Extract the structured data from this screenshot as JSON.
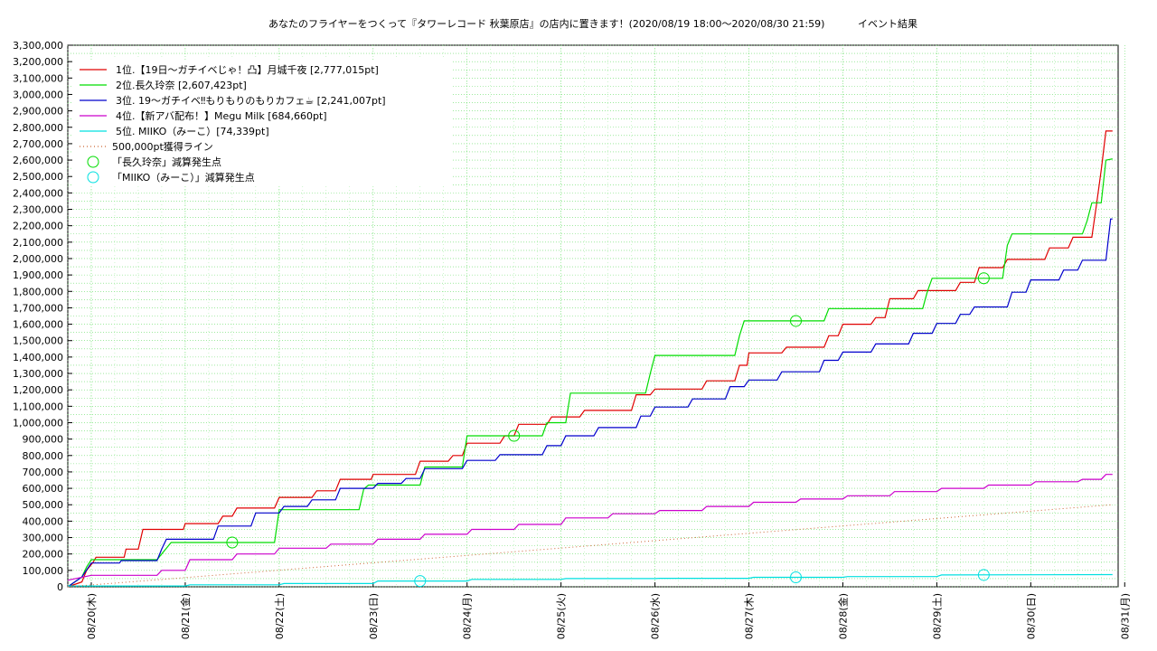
{
  "chart_data": {
    "type": "line",
    "title": "あなたのフライヤーをつくって『タワーレコード 秋葉原店』の店内に置きます！(2020/08/19 18:00〜2020/08/30 21:59)",
    "subtitle": "イベント結果",
    "ylim": [
      0,
      3300000
    ],
    "ytick_labels": [
      "0",
      "100,000",
      "200,000",
      "300,000",
      "400,000",
      "500,000",
      "600,000",
      "700,000",
      "800,000",
      "900,000",
      "1,000,000",
      "1,100,000",
      "1,200,000",
      "1,300,000",
      "1,400,000",
      "1,500,000",
      "1,600,000",
      "1,700,000",
      "1,800,000",
      "1,900,000",
      "2,000,000",
      "2,100,000",
      "2,200,000",
      "2,300,000",
      "2,400,000",
      "2,500,000",
      "2,600,000",
      "2,700,000",
      "2,800,000",
      "2,900,000",
      "3,000,000",
      "3,100,000",
      "3,200,000",
      "3,300,000"
    ],
    "xlim": [
      -0.25,
      10.93
    ],
    "xtick_labels": [
      "08/20(木)",
      "08/21(金)",
      "08/22(土)",
      "08/23(日)",
      "08/24(月)",
      "08/25(火)",
      "08/26(水)",
      "08/27(木)",
      "08/28(金)",
      "08/29(土)",
      "08/30(日)",
      "08/31(月)"
    ],
    "grid": true,
    "legend_position": "top-left",
    "series": [
      {
        "name": "1位.【19日〜ガチイベじゃ！凸】月城千夜 [2,777,015pt]",
        "color": "#e00000",
        "points": [
          [
            -0.25,
            0
          ],
          [
            -0.1,
            30000
          ],
          [
            -0.05,
            100000
          ],
          [
            0.02,
            150000
          ],
          [
            0.05,
            180000
          ],
          [
            0.35,
            180000
          ],
          [
            0.37,
            230000
          ],
          [
            0.5,
            230000
          ],
          [
            0.55,
            350000
          ],
          [
            0.98,
            350000
          ],
          [
            1.0,
            385000
          ],
          [
            1.35,
            385000
          ],
          [
            1.4,
            430000
          ],
          [
            1.5,
            430000
          ],
          [
            1.55,
            480000
          ],
          [
            1.95,
            480000
          ],
          [
            2.0,
            545000
          ],
          [
            2.35,
            545000
          ],
          [
            2.4,
            585000
          ],
          [
            2.6,
            585000
          ],
          [
            2.65,
            655000
          ],
          [
            2.98,
            655000
          ],
          [
            3.0,
            685000
          ],
          [
            3.45,
            685000
          ],
          [
            3.5,
            765000
          ],
          [
            3.8,
            765000
          ],
          [
            3.85,
            800000
          ],
          [
            3.95,
            800000
          ],
          [
            4.0,
            875000
          ],
          [
            4.35,
            875000
          ],
          [
            4.4,
            920000
          ],
          [
            4.5,
            920000
          ],
          [
            4.55,
            990000
          ],
          [
            4.85,
            990000
          ],
          [
            4.9,
            1035000
          ],
          [
            5.2,
            1035000
          ],
          [
            5.25,
            1075000
          ],
          [
            5.75,
            1075000
          ],
          [
            5.8,
            1170000
          ],
          [
            5.95,
            1170000
          ],
          [
            6.0,
            1205000
          ],
          [
            6.5,
            1205000
          ],
          [
            6.55,
            1255000
          ],
          [
            6.85,
            1255000
          ],
          [
            6.9,
            1350000
          ],
          [
            6.98,
            1350000
          ],
          [
            7.0,
            1425000
          ],
          [
            7.35,
            1425000
          ],
          [
            7.4,
            1460000
          ],
          [
            7.8,
            1460000
          ],
          [
            7.85,
            1530000
          ],
          [
            7.95,
            1530000
          ],
          [
            8.0,
            1600000
          ],
          [
            8.3,
            1600000
          ],
          [
            8.35,
            1640000
          ],
          [
            8.45,
            1640000
          ],
          [
            8.5,
            1755000
          ],
          [
            8.75,
            1755000
          ],
          [
            8.8,
            1805000
          ],
          [
            9.2,
            1805000
          ],
          [
            9.25,
            1855000
          ],
          [
            9.4,
            1855000
          ],
          [
            9.45,
            1945000
          ],
          [
            9.7,
            1945000
          ],
          [
            9.75,
            1995000
          ],
          [
            10.15,
            1995000
          ],
          [
            10.2,
            2065000
          ],
          [
            10.4,
            2065000
          ],
          [
            10.45,
            2130000
          ],
          [
            10.65,
            2130000
          ],
          [
            10.7,
            2330000
          ],
          [
            10.75,
            2540000
          ],
          [
            10.8,
            2777015
          ],
          [
            10.87,
            2777015
          ]
        ]
      },
      {
        "name": "2位.長久玲奈 [2,607,423pt]",
        "color": "#00dd00",
        "points": [
          [
            -0.25,
            0
          ],
          [
            -0.1,
            60000
          ],
          [
            -0.05,
            120000
          ],
          [
            0.0,
            165000
          ],
          [
            0.7,
            165000
          ],
          [
            0.85,
            270000
          ],
          [
            1.95,
            270000
          ],
          [
            2.0,
            470000
          ],
          [
            2.85,
            470000
          ],
          [
            2.9,
            595000
          ],
          [
            2.95,
            620000
          ],
          [
            3.5,
            620000
          ],
          [
            3.55,
            730000
          ],
          [
            3.95,
            730000
          ],
          [
            4.0,
            920000
          ],
          [
            4.8,
            920000
          ],
          [
            4.85,
            1000000
          ],
          [
            5.05,
            1000000
          ],
          [
            5.1,
            1180000
          ],
          [
            5.9,
            1180000
          ],
          [
            5.95,
            1300000
          ],
          [
            6.0,
            1410000
          ],
          [
            6.85,
            1410000
          ],
          [
            6.9,
            1530000
          ],
          [
            6.95,
            1620000
          ],
          [
            7.8,
            1620000
          ],
          [
            7.85,
            1695000
          ],
          [
            8.85,
            1695000
          ],
          [
            8.9,
            1800000
          ],
          [
            8.95,
            1880000
          ],
          [
            9.7,
            1880000
          ],
          [
            9.75,
            2080000
          ],
          [
            9.8,
            2150000
          ],
          [
            10.55,
            2150000
          ],
          [
            10.6,
            2230000
          ],
          [
            10.65,
            2340000
          ],
          [
            10.75,
            2340000
          ],
          [
            10.8,
            2600000
          ],
          [
            10.87,
            2607423
          ]
        ]
      },
      {
        "name": "3位. 19〜ガチイベ‼もりもりのもりカフェ☕ [2,241,007pt]",
        "color": "#0000cc",
        "points": [
          [
            -0.25,
            0
          ],
          [
            -0.1,
            60000
          ],
          [
            0.0,
            145000
          ],
          [
            0.3,
            145000
          ],
          [
            0.32,
            160000
          ],
          [
            0.7,
            160000
          ],
          [
            0.75,
            230000
          ],
          [
            0.8,
            290000
          ],
          [
            1.3,
            290000
          ],
          [
            1.35,
            370000
          ],
          [
            1.7,
            370000
          ],
          [
            1.75,
            450000
          ],
          [
            2.0,
            450000
          ],
          [
            2.05,
            490000
          ],
          [
            2.3,
            490000
          ],
          [
            2.35,
            530000
          ],
          [
            2.6,
            530000
          ],
          [
            2.65,
            600000
          ],
          [
            3.0,
            600000
          ],
          [
            3.05,
            630000
          ],
          [
            3.3,
            630000
          ],
          [
            3.35,
            660000
          ],
          [
            3.5,
            660000
          ],
          [
            3.55,
            720000
          ],
          [
            3.95,
            720000
          ],
          [
            4.0,
            770000
          ],
          [
            4.3,
            770000
          ],
          [
            4.35,
            805000
          ],
          [
            4.8,
            805000
          ],
          [
            4.85,
            860000
          ],
          [
            5.0,
            860000
          ],
          [
            5.05,
            920000
          ],
          [
            5.35,
            920000
          ],
          [
            5.4,
            970000
          ],
          [
            5.8,
            970000
          ],
          [
            5.85,
            1040000
          ],
          [
            5.95,
            1040000
          ],
          [
            6.0,
            1095000
          ],
          [
            6.35,
            1095000
          ],
          [
            6.4,
            1145000
          ],
          [
            6.75,
            1145000
          ],
          [
            6.8,
            1220000
          ],
          [
            6.95,
            1220000
          ],
          [
            7.0,
            1260000
          ],
          [
            7.3,
            1260000
          ],
          [
            7.35,
            1310000
          ],
          [
            7.75,
            1310000
          ],
          [
            7.8,
            1380000
          ],
          [
            7.95,
            1380000
          ],
          [
            8.0,
            1430000
          ],
          [
            8.3,
            1430000
          ],
          [
            8.35,
            1480000
          ],
          [
            8.7,
            1480000
          ],
          [
            8.75,
            1545000
          ],
          [
            8.95,
            1545000
          ],
          [
            9.0,
            1605000
          ],
          [
            9.2,
            1605000
          ],
          [
            9.25,
            1660000
          ],
          [
            9.35,
            1660000
          ],
          [
            9.4,
            1705000
          ],
          [
            9.75,
            1705000
          ],
          [
            9.8,
            1795000
          ],
          [
            9.95,
            1795000
          ],
          [
            10.0,
            1870000
          ],
          [
            10.3,
            1870000
          ],
          [
            10.35,
            1930000
          ],
          [
            10.5,
            1930000
          ],
          [
            10.55,
            1990000
          ],
          [
            10.8,
            1990000
          ],
          [
            10.85,
            2241007
          ],
          [
            10.87,
            2241007
          ]
        ]
      },
      {
        "name": "4位.【新アバ配布！】Megu Milk [684,660pt]",
        "color": "#cc00cc",
        "points": [
          [
            -0.25,
            40000
          ],
          [
            0.0,
            70000
          ],
          [
            0.7,
            70000
          ],
          [
            0.75,
            100000
          ],
          [
            1.0,
            100000
          ],
          [
            1.05,
            165000
          ],
          [
            1.5,
            165000
          ],
          [
            1.55,
            200000
          ],
          [
            1.95,
            200000
          ],
          [
            2.0,
            235000
          ],
          [
            2.5,
            235000
          ],
          [
            2.55,
            260000
          ],
          [
            3.0,
            260000
          ],
          [
            3.05,
            290000
          ],
          [
            3.5,
            290000
          ],
          [
            3.55,
            320000
          ],
          [
            4.0,
            320000
          ],
          [
            4.05,
            350000
          ],
          [
            4.5,
            350000
          ],
          [
            4.55,
            380000
          ],
          [
            5.0,
            380000
          ],
          [
            5.05,
            420000
          ],
          [
            5.5,
            420000
          ],
          [
            5.55,
            445000
          ],
          [
            6.0,
            445000
          ],
          [
            6.05,
            465000
          ],
          [
            6.5,
            465000
          ],
          [
            6.55,
            490000
          ],
          [
            7.0,
            490000
          ],
          [
            7.05,
            515000
          ],
          [
            7.5,
            515000
          ],
          [
            7.55,
            535000
          ],
          [
            8.0,
            535000
          ],
          [
            8.05,
            555000
          ],
          [
            8.5,
            555000
          ],
          [
            8.55,
            580000
          ],
          [
            9.0,
            580000
          ],
          [
            9.05,
            600000
          ],
          [
            9.5,
            600000
          ],
          [
            9.55,
            620000
          ],
          [
            10.0,
            620000
          ],
          [
            10.05,
            640000
          ],
          [
            10.5,
            640000
          ],
          [
            10.55,
            655000
          ],
          [
            10.75,
            655000
          ],
          [
            10.8,
            684660
          ],
          [
            10.87,
            684660
          ]
        ]
      },
      {
        "name": "5位. MIIKO（みーこ）[74,339pt]",
        "color": "#00e0e0",
        "points": [
          [
            -0.25,
            5000
          ],
          [
            1.0,
            5000
          ],
          [
            1.05,
            12000
          ],
          [
            2.0,
            12000
          ],
          [
            2.05,
            20000
          ],
          [
            3.0,
            20000
          ],
          [
            3.05,
            35000
          ],
          [
            4.0,
            35000
          ],
          [
            4.05,
            45000
          ],
          [
            5.0,
            45000
          ],
          [
            5.05,
            50000
          ],
          [
            6.0,
            50000
          ],
          [
            6.05,
            52000
          ],
          [
            7.0,
            52000
          ],
          [
            7.05,
            58000
          ],
          [
            8.0,
            58000
          ],
          [
            8.05,
            62000
          ],
          [
            9.0,
            62000
          ],
          [
            9.05,
            72000
          ],
          [
            10.87,
            74339
          ]
        ]
      },
      {
        "name": "500,000pt獲得ライン",
        "color": "#cc6633",
        "dotted": true,
        "points": [
          [
            -0.25,
            0
          ],
          [
            10.87,
            500000
          ]
        ]
      }
    ],
    "markers": [
      {
        "name": "「長久玲奈」減算発生点",
        "color": "#00dd00",
        "points": [
          [
            1.5,
            270000
          ],
          [
            4.5,
            920000
          ],
          [
            7.5,
            1620000
          ],
          [
            9.5,
            1880000
          ]
        ]
      },
      {
        "name": "「MIIKO（みーこ）」減算発生点",
        "color": "#00e0e0",
        "points": [
          [
            3.5,
            35000
          ],
          [
            7.5,
            58000
          ],
          [
            9.5,
            72000
          ]
        ]
      }
    ]
  }
}
